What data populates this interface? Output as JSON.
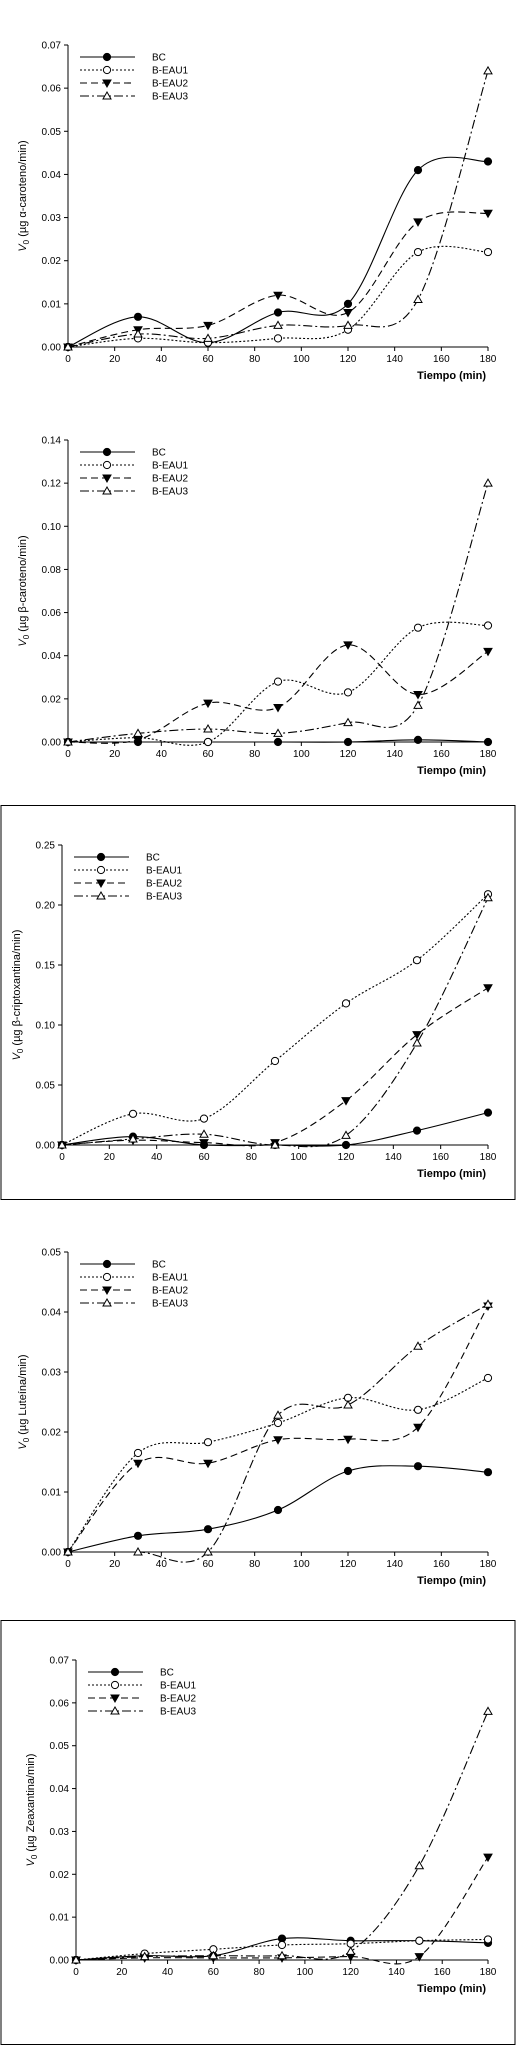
{
  "chart_data": [
    {
      "type": "line",
      "xlabel": "Tiempo (min)",
      "ylabel_sub": "0",
      "ylabel_rest": " (µg α-caroteno/min)",
      "ylabel_prefix": "V",
      "x": [
        0,
        30,
        60,
        90,
        120,
        150,
        180
      ],
      "xticks": [
        0,
        20,
        40,
        60,
        80,
        100,
        120,
        140,
        160,
        180
      ],
      "xlim": [
        0,
        180
      ],
      "ylim": [
        0,
        0.07
      ],
      "yticks": [
        0.0,
        0.01,
        0.02,
        0.03,
        0.04,
        0.05,
        0.06,
        0.07
      ],
      "ytick_labels": [
        "0.00",
        "0.01",
        "0.02",
        "0.03",
        "0.04",
        "0.05",
        "0.06",
        "0.07"
      ],
      "grid": false,
      "legend_position": "top-left",
      "series": [
        {
          "name": "BC",
          "values": [
            0,
            0.007,
            0.001,
            0.008,
            0.01,
            0.041,
            0.043
          ]
        },
        {
          "name": "B-EAU1",
          "values": [
            0,
            0.002,
            0.001,
            0.002,
            0.004,
            0.022,
            0.022
          ]
        },
        {
          "name": "B-EAU2",
          "values": [
            0,
            0.004,
            0.005,
            0.012,
            0.008,
            0.029,
            0.031
          ]
        },
        {
          "name": "B-EAU3",
          "values": [
            0,
            0.003,
            0.002,
            0.005,
            0.005,
            0.011,
            0.064
          ]
        }
      ]
    },
    {
      "type": "line",
      "xlabel": "Tiempo (min)",
      "ylabel_sub": "0",
      "ylabel_rest": " (µg β-caroteno/min)",
      "ylabel_prefix": "V",
      "x": [
        0,
        30,
        60,
        90,
        120,
        150,
        180
      ],
      "xticks": [
        0,
        20,
        40,
        60,
        80,
        100,
        120,
        140,
        160,
        180
      ],
      "xlim": [
        0,
        180
      ],
      "ylim": [
        0,
        0.14
      ],
      "yticks": [
        0.0,
        0.02,
        0.04,
        0.06,
        0.08,
        0.1,
        0.12,
        0.14
      ],
      "ytick_labels": [
        "0.00",
        "0.02",
        "0.04",
        "0.06",
        "0.08",
        "0.10",
        "0.12",
        "0.14"
      ],
      "grid": false,
      "legend_position": "top-left",
      "series": [
        {
          "name": "BC",
          "values": [
            0,
            0.0,
            0.0,
            0.0,
            0.0,
            0.001,
            0.0
          ]
        },
        {
          "name": "B-EAU1",
          "values": [
            0,
            0.002,
            0.0,
            0.028,
            0.023,
            0.053,
            0.054
          ]
        },
        {
          "name": "B-EAU2",
          "values": [
            0,
            0.001,
            0.018,
            0.016,
            0.045,
            0.022,
            0.042
          ]
        },
        {
          "name": "B-EAU3",
          "values": [
            0,
            0.004,
            0.006,
            0.004,
            0.009,
            0.017,
            0.12
          ]
        }
      ]
    },
    {
      "type": "line",
      "xlabel": "Tiempo (min)",
      "ylabel_sub": "0",
      "ylabel_rest": " (µg β-criptoxantina/min)",
      "ylabel_prefix": "V",
      "x": [
        0,
        30,
        60,
        90,
        120,
        150,
        180
      ],
      "xticks": [
        0,
        20,
        40,
        60,
        80,
        100,
        120,
        140,
        160,
        180
      ],
      "xlim": [
        0,
        180
      ],
      "ylim": [
        0,
        0.25
      ],
      "yticks": [
        0.0,
        0.05,
        0.1,
        0.15,
        0.2,
        0.25
      ],
      "ytick_labels": [
        "0.00",
        "0.05",
        "0.10",
        "0.15",
        "0.20",
        "0.25"
      ],
      "grid": false,
      "legend_position": "top-left",
      "series": [
        {
          "name": "BC",
          "values": [
            0,
            0.007,
            0.0,
            0.0,
            0.0,
            0.012,
            0.027
          ]
        },
        {
          "name": "B-EAU1",
          "values": [
            0,
            0.026,
            0.022,
            0.07,
            0.118,
            0.154,
            0.209
          ]
        },
        {
          "name": "B-EAU2",
          "values": [
            0,
            0.004,
            0.002,
            0.002,
            0.037,
            0.092,
            0.131
          ]
        },
        {
          "name": "B-EAU3",
          "values": [
            0,
            0.005,
            0.009,
            0.0,
            0.008,
            0.085,
            0.206
          ]
        }
      ]
    },
    {
      "type": "line",
      "xlabel": "Tiempo (min)",
      "ylabel_sub": "0",
      "ylabel_rest": " (µg Luteína/min)",
      "ylabel_prefix": "V",
      "x": [
        0,
        30,
        60,
        90,
        120,
        150,
        180
      ],
      "xticks": [
        0,
        20,
        40,
        60,
        80,
        100,
        120,
        140,
        160,
        180
      ],
      "xlim": [
        0,
        180
      ],
      "ylim": [
        0,
        0.05
      ],
      "yticks": [
        0.0,
        0.01,
        0.02,
        0.03,
        0.04,
        0.05
      ],
      "ytick_labels": [
        "0.00",
        "0.01",
        "0.02",
        "0.03",
        "0.04",
        "0.05"
      ],
      "grid": false,
      "legend_position": "top-left",
      "series": [
        {
          "name": "BC",
          "values": [
            0,
            0.0027,
            0.0038,
            0.007,
            0.0135,
            0.0143,
            0.0133
          ]
        },
        {
          "name": "B-EAU1",
          "values": [
            0,
            0.0165,
            0.0183,
            0.0215,
            0.0257,
            0.0237,
            0.029
          ]
        },
        {
          "name": "B-EAU2",
          "values": [
            0,
            0.0148,
            0.0148,
            0.0187,
            0.0188,
            0.0208,
            0.041
          ]
        },
        {
          "name": "B-EAU3",
          "values": [
            0,
            0.0,
            0.0,
            0.0228,
            0.0245,
            0.0343,
            0.0413
          ]
        }
      ]
    },
    {
      "type": "line",
      "xlabel": "Tiempo (min)",
      "ylabel_sub": "0",
      "ylabel_rest": " (µg Zeaxantina/min)",
      "ylabel_prefix": "V",
      "x": [
        0,
        30,
        60,
        90,
        120,
        150,
        180
      ],
      "xticks": [
        0,
        20,
        40,
        60,
        80,
        100,
        120,
        140,
        160,
        180
      ],
      "xlim": [
        0,
        180
      ],
      "ylim": [
        0,
        0.07
      ],
      "yticks": [
        0.0,
        0.01,
        0.02,
        0.03,
        0.04,
        0.05,
        0.06,
        0.07
      ],
      "ytick_labels": [
        "0.00",
        "0.01",
        "0.02",
        "0.03",
        "0.04",
        "0.05",
        "0.06",
        "0.07"
      ],
      "grid": false,
      "legend_position": "top-left",
      "series": [
        {
          "name": "BC",
          "values": [
            0,
            0.001,
            0.001,
            0.005,
            0.0045,
            0.0045,
            0.004
          ]
        },
        {
          "name": "B-EAU1",
          "values": [
            0,
            0.0015,
            0.0025,
            0.0035,
            0.0038,
            0.0045,
            0.0048
          ]
        },
        {
          "name": "B-EAU2",
          "values": [
            0,
            0.0005,
            0.0005,
            0.0005,
            0.0008,
            0.0008,
            0.024
          ]
        },
        {
          "name": "B-EAU3",
          "values": [
            0,
            0.0008,
            0.001,
            0.001,
            0.002,
            0.022,
            0.058
          ]
        }
      ]
    }
  ]
}
